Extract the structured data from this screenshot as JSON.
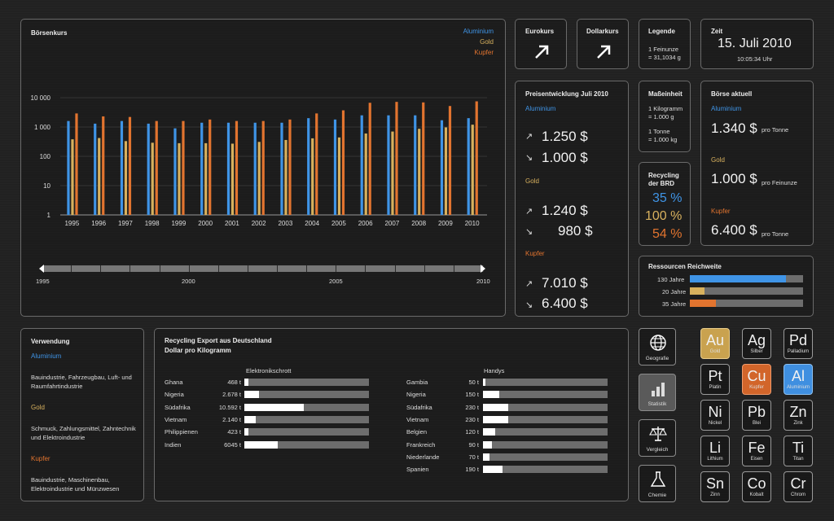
{
  "chart": {
    "title": "Börsenkurs",
    "legend": [
      "Aluminium",
      "Gold",
      "Kupfer"
    ],
    "y_ticks": [
      "10 000",
      "1 000",
      "100",
      "10",
      "1"
    ],
    "timeline": {
      "start": "1995",
      "mid1": "2000",
      "mid2": "2005",
      "end": "2010"
    }
  },
  "chart_data": {
    "type": "bar",
    "title": "Börsenkurs",
    "y_scale": "log",
    "ylim": [
      1,
      10000
    ],
    "categories": [
      "1995",
      "1996",
      "1997",
      "1998",
      "1999",
      "2000",
      "2001",
      "2002",
      "2003",
      "2004",
      "2005",
      "2006",
      "2007",
      "2008",
      "2009",
      "2010"
    ],
    "series": [
      {
        "name": "Aluminium",
        "color": "#3f94e6",
        "values": [
          1600,
          1300,
          1600,
          1300,
          900,
          1400,
          1400,
          1400,
          1400,
          2000,
          1800,
          2500,
          2500,
          2500,
          1700,
          2000
        ]
      },
      {
        "name": "Gold",
        "color": "#d8b15e",
        "values": [
          380,
          420,
          330,
          290,
          280,
          280,
          270,
          310,
          360,
          410,
          440,
          600,
          700,
          870,
          970,
          1200
        ]
      },
      {
        "name": "Kupfer",
        "color": "#e2742f",
        "values": [
          2900,
          2300,
          2200,
          1600,
          1600,
          1800,
          1600,
          1600,
          1800,
          2900,
          3700,
          6700,
          7200,
          6900,
          5200,
          7500
        ]
      }
    ]
  },
  "tiles": {
    "euro": "Eurokurs",
    "dollar": "Dollarkurs",
    "legende_title": "Legende",
    "legende_text1": "1 Feinunze",
    "legende_text2": "= 31,1034 g",
    "zeit_title": "Zeit",
    "zeit_date": "15. Juli 2010",
    "zeit_time": "10:05:34 Uhr"
  },
  "preis": {
    "title": "Preisentwicklung Juli 2010",
    "groups": [
      {
        "name": "Aluminium",
        "up": "1.250 $",
        "down": "1.000 $"
      },
      {
        "name": "Gold",
        "up": "1.240 $",
        "down": "980 $"
      },
      {
        "name": "Kupfer",
        "up": "7.010 $",
        "down": "6.400 $"
      }
    ]
  },
  "mass": {
    "title": "Maßeinheit",
    "l1": "1 Kilogramm",
    "l2": "= 1.000 g",
    "l3": "1 Tonne",
    "l4": "= 1.000 kg"
  },
  "recycling": {
    "title1": "Recycling",
    "title2": "der BRD",
    "al": "35 %",
    "au": "100 %",
    "cu": "54 %"
  },
  "boerse": {
    "title": "Börse aktuell",
    "items": [
      {
        "name": "Aluminium",
        "value": "1.340 $",
        "unit": "pro Tonne"
      },
      {
        "name": "Gold",
        "value": "1.000 $",
        "unit": "pro Feinunze"
      },
      {
        "name": "Kupfer",
        "value": "6.400 $",
        "unit": "pro Tonne"
      }
    ]
  },
  "reichweite": {
    "title": "Ressourcen Reichweite",
    "items": [
      {
        "label": "130 Jahre",
        "fill": 0.85,
        "color": "#3f94e6"
      },
      {
        "label": "20 Jahre",
        "fill": 0.13,
        "color": "#d8b15e"
      },
      {
        "label": "35 Jahre",
        "fill": 0.23,
        "color": "#e2742f"
      }
    ]
  },
  "verwendung": {
    "title": "Verwendung",
    "al": "Aluminium",
    "al_text": "Bauindustrie, Fahrzeugbau, Luft- und Raumfahrtindustrie",
    "au": "Gold",
    "au_text": "Schmuck, Zahlungsmittel, Zahntechnik und Elektroindustrie",
    "cu": "Kupfer",
    "cu_text": "Bauindustrie, Maschinenbau, Elektroindustrie und Münzwesen"
  },
  "export": {
    "title1": "Recycling Export aus Deutschland",
    "title2": "Dollar pro Kilogramm",
    "schrott_title": "Elektronikschrott",
    "handys_title": "Handys",
    "schrott": [
      {
        "country": "Ghana",
        "value": "468 t",
        "fill": 0.03
      },
      {
        "country": "Nigeria",
        "value": "2.678 t",
        "fill": 0.12
      },
      {
        "country": "Südafrika",
        "value": "10.592 t",
        "fill": 0.48
      },
      {
        "country": "Vietnam",
        "value": "2.140 t",
        "fill": 0.09
      },
      {
        "country": "Philippienen",
        "value": "423 t",
        "fill": 0.03
      },
      {
        "country": "Indien",
        "value": "6045 t",
        "fill": 0.27
      }
    ],
    "handys": [
      {
        "country": "Gambia",
        "value": "50 t",
        "fill": 0.02
      },
      {
        "country": "Nigeria",
        "value": "150 t",
        "fill": 0.13
      },
      {
        "country": "Südafrika",
        "value": "230 t",
        "fill": 0.2
      },
      {
        "country": "Vietnam",
        "value": "230 t",
        "fill": 0.2
      },
      {
        "country": "Belgien",
        "value": "120 t",
        "fill": 0.1
      },
      {
        "country": "Frankreich",
        "value": "90 t",
        "fill": 0.07
      },
      {
        "country": "Niederlande",
        "value": "70 t",
        "fill": 0.05
      },
      {
        "country": "Spanien",
        "value": "190 t",
        "fill": 0.16
      }
    ]
  },
  "nav": [
    {
      "label": "Geografie",
      "icon": "globe-icon"
    },
    {
      "label": "Statistik",
      "icon": "bar-chart-icon"
    },
    {
      "label": "Vergleich",
      "icon": "scale-icon"
    },
    {
      "label": "Chemie",
      "icon": "flask-icon"
    }
  ],
  "elements": [
    {
      "sym": "Au",
      "name": "Gold",
      "style": "gold"
    },
    {
      "sym": "Ag",
      "name": "Silber",
      "style": ""
    },
    {
      "sym": "Pd",
      "name": "Palladium",
      "style": ""
    },
    {
      "sym": "Pt",
      "name": "Platin",
      "style": ""
    },
    {
      "sym": "Cu",
      "name": "Kupfer",
      "style": "copper"
    },
    {
      "sym": "Al",
      "name": "Aluminium",
      "style": "alu"
    },
    {
      "sym": "Ni",
      "name": "Nickel",
      "style": ""
    },
    {
      "sym": "Pb",
      "name": "Blei",
      "style": ""
    },
    {
      "sym": "Zn",
      "name": "Zink",
      "style": ""
    },
    {
      "sym": "Li",
      "name": "Lithium",
      "style": ""
    },
    {
      "sym": "Fe",
      "name": "Eisen",
      "style": ""
    },
    {
      "sym": "Ti",
      "name": "Titan",
      "style": ""
    },
    {
      "sym": "Sn",
      "name": "Zinn",
      "style": ""
    },
    {
      "sym": "Co",
      "name": "Kobalt",
      "style": ""
    },
    {
      "sym": "Cr",
      "name": "Chrom",
      "style": ""
    }
  ]
}
